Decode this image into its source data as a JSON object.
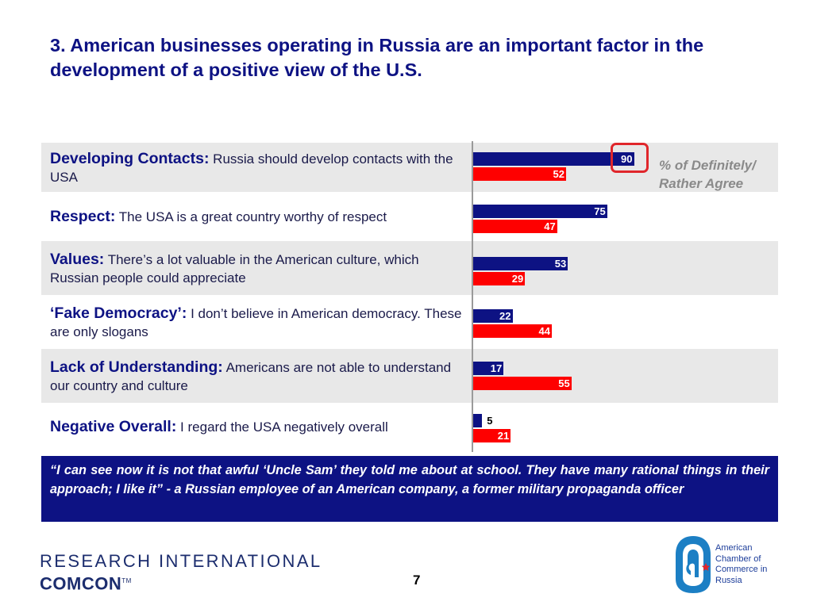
{
  "title": "3.  American businesses operating in Russia are an important factor in the development of a positive view of the U.S.",
  "legend": "% of Definitely/ Rather Agree",
  "colors": {
    "series1": "#0d1283",
    "series2": "#fe0000",
    "row_shade": "#e8e8e8",
    "highlight": "#e0262b"
  },
  "rows": [
    {
      "head": "Developing Contacts:",
      "text": " Russia should develop contacts with the USA",
      "shaded": true
    },
    {
      "head": "Respect:",
      "text": " The USA is a great country worthy of respect",
      "shaded": false
    },
    {
      "head": "Values:",
      "text": " There’s a lot valuable in the American culture, which Russian people could appreciate",
      "shaded": true
    },
    {
      "head": "‘Fake Democracy’:",
      "text": " I don’t believe in American democracy. These are only slogans",
      "shaded": false
    },
    {
      "head": "Lack of Understanding:",
      "text": " Americans are not able to understand our country and culture",
      "shaded": true
    },
    {
      "head": "Negative Overall:",
      "text": " I regard the USA negatively overall",
      "shaded": false
    }
  ],
  "chart_data": {
    "type": "bar",
    "orientation": "horizontal",
    "categories": [
      "Developing Contacts",
      "Respect",
      "Values",
      "‘Fake Democracy’",
      "Lack of Understanding",
      "Negative Overall"
    ],
    "series": [
      {
        "values": [
          90,
          75,
          53,
          22,
          17,
          5
        ]
      },
      {
        "values": [
          52,
          47,
          29,
          44,
          55,
          21
        ]
      }
    ],
    "labels": [
      [
        "90",
        "52"
      ],
      [
        "75",
        "47"
      ],
      [
        "53",
        "29"
      ],
      [
        "22",
        "44"
      ],
      [
        "17",
        "55"
      ],
      [
        "5",
        "21"
      ]
    ],
    "xlim": [
      0,
      100
    ],
    "legend": "% of Definitely/ Rather Agree",
    "annotation": "first bar value highlighted with red rounded box"
  },
  "quote": "“I can see now it is not that awful ‘Uncle Sam’ they told me about at school. They have many rational things in their approach; I like it”  - a Russian employee of an American company, a former military propaganda officer",
  "footer": {
    "logo_line1": "RESEARCH INTERNATIONAL",
    "logo_line2": "COMCON",
    "logo_tm": "TM",
    "page_number": "7",
    "amcham_lines": [
      "American",
      "Chamber of",
      "Commerce in",
      "Russia"
    ]
  }
}
